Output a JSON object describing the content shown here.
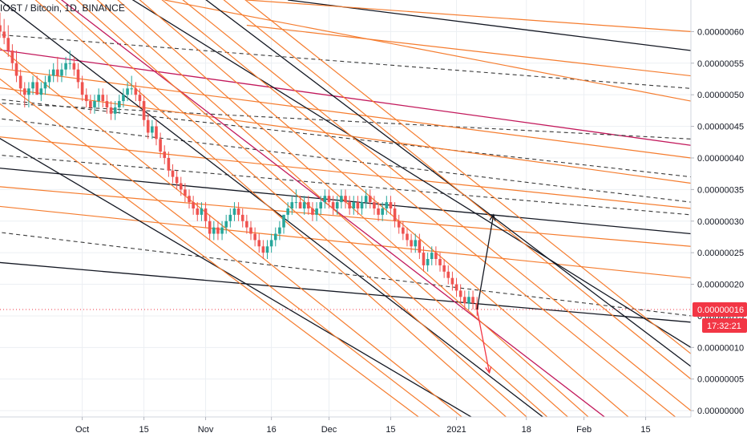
{
  "header": {
    "symbol": "IOST / Bitcoin, 1D, BINANCE"
  },
  "price_axis": {
    "ticks": [
      "0.00000060",
      "0.00000055",
      "0.00000050",
      "0.00000045",
      "0.00000040",
      "0.00000035",
      "0.00000030",
      "0.00000025",
      "0.00000020",
      "0.00000015",
      "0.00000010",
      "0.00000005",
      "0.00000000"
    ],
    "tick_values": [
      60,
      55,
      50,
      45,
      40,
      35,
      30,
      25,
      20,
      15,
      10,
      5,
      0
    ],
    "current_price_label": "0.00000016",
    "current_price_value": 16,
    "countdown_label": "17:32:21"
  },
  "time_axis": {
    "labels": [
      "Oct",
      "15",
      "Nov",
      "16",
      "Dec",
      "15",
      "2021",
      "18",
      "Feb",
      "15"
    ],
    "label_days": [
      20,
      35,
      50,
      66,
      80,
      95,
      111,
      128,
      142,
      157
    ]
  },
  "colors": {
    "bull": "#26a69a",
    "bear": "#ef5350",
    "orange": "#f57c2e",
    "red_line": "#c2185b",
    "black_line": "#131722",
    "dashed": "#3a3a3a",
    "price_line": "#f23645",
    "label_bg": "#f23645",
    "arrow_up": "#131722",
    "arrow_down": "#f23645",
    "grid": "#eceff3"
  },
  "chart_data": {
    "type": "candlestick",
    "title": "IOST / Bitcoin, 1D, BINANCE",
    "price_unit_scale": "1e-8 BTC",
    "x_unit": "days since 2020-09-11",
    "ylim": [
      -1,
      65
    ],
    "xlim": [
      0,
      168
    ],
    "grid": true,
    "candles": [
      [
        0,
        61,
        63,
        59,
        60
      ],
      [
        1,
        60,
        62,
        58,
        59
      ],
      [
        2,
        59,
        61,
        56,
        57
      ],
      [
        3,
        57,
        58,
        54,
        55
      ],
      [
        4,
        55,
        57,
        52,
        53
      ],
      [
        5,
        53,
        54,
        50,
        51
      ],
      [
        6,
        51,
        52,
        48,
        50
      ],
      [
        7,
        50,
        52,
        48,
        51
      ],
      [
        8,
        51,
        53,
        50,
        52
      ],
      [
        9,
        52,
        53,
        50,
        50
      ],
      [
        10,
        50,
        52,
        49,
        51
      ],
      [
        11,
        51,
        53,
        50,
        52
      ],
      [
        12,
        52,
        54,
        51,
        53
      ],
      [
        13,
        53,
        55,
        52,
        54
      ],
      [
        14,
        54,
        56,
        52,
        53
      ],
      [
        15,
        53,
        55,
        52,
        54
      ],
      [
        16,
        54,
        56,
        53,
        55
      ],
      [
        17,
        55,
        57,
        54,
        55
      ],
      [
        18,
        55,
        56,
        53,
        54
      ],
      [
        19,
        54,
        55,
        51,
        52
      ],
      [
        20,
        52,
        53,
        49,
        50
      ],
      [
        21,
        50,
        51,
        48,
        49
      ],
      [
        22,
        49,
        50,
        47,
        48
      ],
      [
        23,
        48,
        50,
        47,
        49
      ],
      [
        24,
        49,
        51,
        48,
        50
      ],
      [
        25,
        50,
        51,
        48,
        49
      ],
      [
        26,
        49,
        50,
        47,
        48
      ],
      [
        27,
        48,
        49,
        46,
        47
      ],
      [
        28,
        47,
        49,
        46,
        48
      ],
      [
        29,
        48,
        50,
        47,
        49
      ],
      [
        30,
        49,
        51,
        48,
        50
      ],
      [
        31,
        50,
        52,
        49,
        51
      ],
      [
        32,
        51,
        53,
        50,
        51
      ],
      [
        33,
        51,
        52,
        49,
        50
      ],
      [
        34,
        50,
        51,
        48,
        49
      ],
      [
        35,
        49,
        50,
        45,
        46
      ],
      [
        36,
        46,
        47,
        43,
        44
      ],
      [
        37,
        44,
        46,
        43,
        45
      ],
      [
        38,
        45,
        46,
        42,
        43
      ],
      [
        39,
        43,
        44,
        40,
        41
      ],
      [
        40,
        41,
        42,
        39,
        40
      ],
      [
        41,
        40,
        41,
        37,
        38
      ],
      [
        42,
        38,
        39,
        36,
        37
      ],
      [
        43,
        37,
        38,
        35,
        36
      ],
      [
        44,
        36,
        37,
        34,
        35
      ],
      [
        45,
        35,
        36,
        33,
        34
      ],
      [
        46,
        34,
        35,
        32,
        33
      ],
      [
        47,
        33,
        34,
        31,
        32
      ],
      [
        48,
        32,
        33,
        30,
        31
      ],
      [
        49,
        31,
        33,
        30,
        32
      ],
      [
        50,
        32,
        33,
        29,
        30
      ],
      [
        51,
        30,
        31,
        27,
        28
      ],
      [
        52,
        28,
        30,
        27,
        29
      ],
      [
        53,
        29,
        30,
        27,
        28
      ],
      [
        54,
        28,
        30,
        27,
        29
      ],
      [
        55,
        29,
        31,
        28,
        30
      ],
      [
        56,
        30,
        32,
        29,
        31
      ],
      [
        57,
        31,
        33,
        30,
        32
      ],
      [
        58,
        32,
        33,
        30,
        31
      ],
      [
        59,
        31,
        32,
        29,
        30
      ],
      [
        60,
        30,
        31,
        28,
        29
      ],
      [
        61,
        29,
        30,
        27,
        28
      ],
      [
        62,
        28,
        29,
        26,
        27
      ],
      [
        63,
        27,
        28,
        25,
        26
      ],
      [
        64,
        26,
        27,
        24,
        25
      ],
      [
        65,
        25,
        27,
        24,
        26
      ],
      [
        66,
        26,
        28,
        25,
        27
      ],
      [
        67,
        27,
        29,
        26,
        28
      ],
      [
        68,
        28,
        30,
        27,
        29
      ],
      [
        69,
        29,
        31,
        28,
        31
      ],
      [
        70,
        31,
        33,
        30,
        32
      ],
      [
        71,
        32,
        34,
        31,
        33
      ],
      [
        72,
        33,
        35,
        32,
        33
      ],
      [
        73,
        33,
        34,
        32,
        32
      ],
      [
        74,
        32,
        34,
        31,
        33
      ],
      [
        75,
        33,
        34,
        31,
        32
      ],
      [
        76,
        32,
        33,
        30,
        31
      ],
      [
        77,
        31,
        33,
        30,
        32
      ],
      [
        78,
        32,
        34,
        31,
        33
      ],
      [
        79,
        33,
        35,
        32,
        34
      ],
      [
        80,
        34,
        35,
        32,
        33
      ],
      [
        81,
        33,
        34,
        31,
        32
      ],
      [
        82,
        32,
        34,
        31,
        33
      ],
      [
        83,
        33,
        35,
        32,
        34
      ],
      [
        84,
        34,
        35,
        32,
        33
      ],
      [
        85,
        33,
        34,
        31,
        32
      ],
      [
        86,
        32,
        34,
        31,
        33
      ],
      [
        87,
        33,
        34,
        31,
        32
      ],
      [
        88,
        32,
        34,
        31,
        33
      ],
      [
        89,
        33,
        35,
        32,
        34
      ],
      [
        90,
        34,
        35,
        32,
        33
      ],
      [
        91,
        33,
        34,
        31,
        32
      ],
      [
        92,
        32,
        33,
        30,
        31
      ],
      [
        93,
        31,
        33,
        30,
        32
      ],
      [
        94,
        32,
        34,
        31,
        33
      ],
      [
        95,
        33,
        34,
        31,
        32
      ],
      [
        96,
        32,
        33,
        29,
        30
      ],
      [
        97,
        30,
        31,
        28,
        29
      ],
      [
        98,
        29,
        30,
        27,
        28
      ],
      [
        99,
        28,
        29,
        26,
        27
      ],
      [
        100,
        27,
        28,
        25,
        26
      ],
      [
        101,
        26,
        28,
        25,
        27
      ],
      [
        102,
        27,
        28,
        24,
        25
      ],
      [
        103,
        25,
        26,
        22,
        23
      ],
      [
        104,
        23,
        25,
        22,
        24
      ],
      [
        105,
        24,
        26,
        23,
        25
      ],
      [
        106,
        25,
        26,
        23,
        24
      ],
      [
        107,
        24,
        25,
        22,
        23
      ],
      [
        108,
        23,
        24,
        21,
        22
      ],
      [
        109,
        22,
        23,
        20,
        21
      ],
      [
        110,
        21,
        22,
        19,
        20
      ],
      [
        111,
        20,
        21,
        18,
        19
      ],
      [
        112,
        19,
        20,
        17,
        18
      ],
      [
        113,
        18,
        19,
        16,
        17
      ],
      [
        114,
        17,
        19,
        16,
        18
      ],
      [
        115,
        18,
        19,
        16,
        17
      ],
      [
        116,
        17,
        18,
        15,
        16
      ]
    ],
    "trend_lines": [
      {
        "style": "solid-black",
        "points": [
          [
            -10,
            39
          ],
          [
            168,
            28
          ]
        ]
      },
      {
        "style": "solid-black",
        "points": [
          [
            -10,
            24
          ],
          [
            168,
            14
          ]
        ]
      },
      {
        "style": "solid-black",
        "points": [
          [
            70,
            65
          ],
          [
            168,
            57
          ]
        ]
      },
      {
        "style": "solid-red",
        "points": [
          [
            -10,
            58
          ],
          [
            168,
            42
          ]
        ]
      },
      {
        "style": "dashed",
        "points": [
          [
            -10,
            50
          ],
          [
            168,
            37
          ]
        ]
      },
      {
        "style": "dashed",
        "points": [
          [
            -10,
            47
          ],
          [
            168,
            33
          ]
        ]
      },
      {
        "style": "dashed",
        "points": [
          [
            -10,
            41
          ],
          [
            168,
            31
          ]
        ]
      },
      {
        "style": "dashed",
        "points": [
          [
            -10,
            29
          ],
          [
            168,
            15
          ]
        ]
      },
      {
        "style": "dashed",
        "points": [
          [
            -10,
            60
          ],
          [
            168,
            51
          ]
        ]
      },
      {
        "style": "dashed",
        "points": [
          [
            -10,
            49
          ],
          [
            168,
            43
          ]
        ]
      },
      {
        "style": "orange",
        "points": [
          [
            -10,
            55
          ],
          [
            168,
            40
          ]
        ]
      },
      {
        "style": "orange",
        "points": [
          [
            -10,
            52
          ],
          [
            168,
            36
          ]
        ]
      },
      {
        "style": "orange",
        "points": [
          [
            -10,
            44
          ],
          [
            168,
            32
          ]
        ]
      },
      {
        "style": "orange",
        "points": [
          [
            -10,
            36
          ],
          [
            168,
            26
          ]
        ]
      },
      {
        "style": "orange",
        "points": [
          [
            -10,
            33
          ],
          [
            168,
            21
          ]
        ]
      },
      {
        "style": "orange",
        "points": [
          [
            60,
            65
          ],
          [
            168,
            60
          ]
        ]
      },
      {
        "style": "orange",
        "points": [
          [
            60,
            61
          ],
          [
            168,
            53
          ]
        ]
      },
      {
        "style": "orange",
        "points": [
          [
            40,
            65
          ],
          [
            168,
            49
          ]
        ]
      },
      {
        "style": "solid-black",
        "points": [
          [
            20,
            70
          ],
          [
            168,
            10
          ]
        ]
      },
      {
        "style": "solid-black",
        "points": [
          [
            0,
            65
          ],
          [
            140,
            -5
          ]
        ]
      },
      {
        "style": "solid-black",
        "points": [
          [
            -5,
            45
          ],
          [
            125,
            -5
          ]
        ]
      },
      {
        "style": "solid-black",
        "points": [
          [
            40,
            70
          ],
          [
            168,
            7
          ]
        ]
      },
      {
        "style": "solid-red",
        "points": [
          [
            5,
            70
          ],
          [
            155,
            -5
          ]
        ]
      },
      {
        "style": "orange",
        "points": [
          [
            0,
            70
          ],
          [
            130,
            -5
          ]
        ]
      },
      {
        "style": "orange",
        "points": [
          [
            5,
            70
          ],
          [
            135,
            -5
          ]
        ]
      },
      {
        "style": "orange",
        "points": [
          [
            10,
            70
          ],
          [
            140,
            -5
          ]
        ]
      },
      {
        "style": "orange",
        "points": [
          [
            15,
            70
          ],
          [
            145,
            -5
          ]
        ]
      },
      {
        "style": "orange",
        "points": [
          [
            20,
            70
          ],
          [
            150,
            -5
          ]
        ]
      },
      {
        "style": "orange",
        "points": [
          [
            25,
            70
          ],
          [
            160,
            -5
          ]
        ]
      },
      {
        "style": "orange",
        "points": [
          [
            30,
            70
          ],
          [
            168,
            -3
          ]
        ]
      },
      {
        "style": "orange",
        "points": [
          [
            35,
            70
          ],
          [
            168,
            0
          ]
        ]
      },
      {
        "style": "orange",
        "points": [
          [
            45,
            70
          ],
          [
            168,
            5
          ]
        ]
      },
      {
        "style": "orange",
        "points": [
          [
            50,
            70
          ],
          [
            168,
            9
          ]
        ]
      },
      {
        "style": "orange",
        "points": [
          [
            -5,
            60
          ],
          [
            120,
            -5
          ]
        ]
      },
      {
        "style": "orange",
        "points": [
          [
            -5,
            55
          ],
          [
            115,
            -5
          ]
        ]
      },
      {
        "style": "orange",
        "points": [
          [
            -5,
            51
          ],
          [
            110,
            -5
          ]
        ]
      }
    ],
    "annotations": [
      {
        "type": "arrow",
        "color": "arrow_up",
        "from": [
          116,
          16
        ],
        "to": [
          120,
          31
        ]
      },
      {
        "type": "arrow",
        "color": "arrow_down",
        "from": [
          116,
          16
        ],
        "to": [
          119,
          6
        ]
      },
      {
        "type": "price-line",
        "value": 16
      }
    ]
  }
}
